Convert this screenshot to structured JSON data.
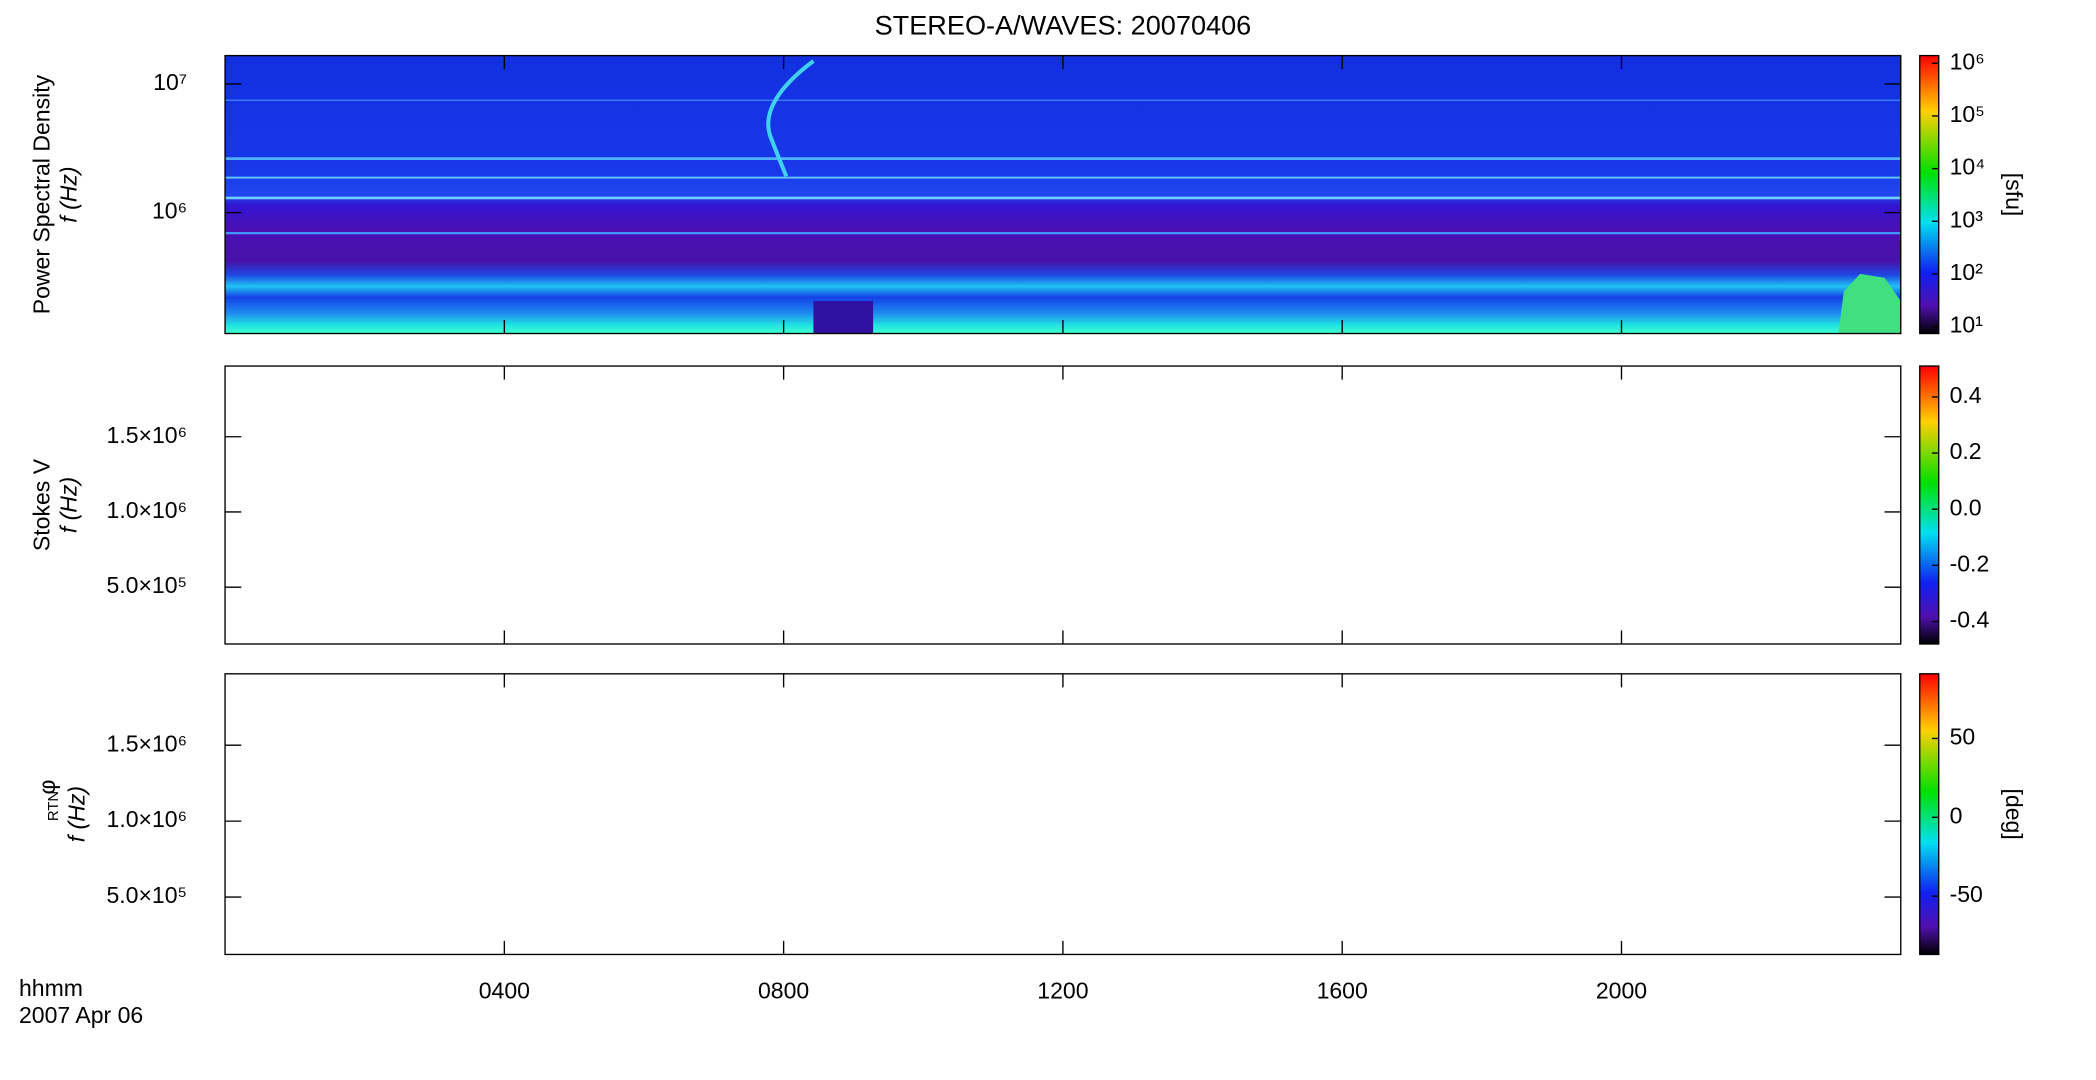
{
  "title": "STEREO-A/WAVES: 20070406",
  "x_axis": {
    "label": "hhmm",
    "date": "2007 Apr 06",
    "xlim": [
      0,
      24
    ],
    "xticks": [
      {
        "value": 4,
        "label": "0400"
      },
      {
        "value": 8,
        "label": "0800"
      },
      {
        "value": 12,
        "label": "1200"
      },
      {
        "value": 16,
        "label": "1600"
      },
      {
        "value": 20,
        "label": "2000"
      }
    ]
  },
  "chart_data": [
    {
      "type": "spectrogram",
      "ylabel": "Power Spectral Density",
      "ylabel2": "f (Hz)",
      "log_y": true,
      "ylim": [
        115000,
        16600000
      ],
      "yticks": [
        {
          "value": 1000000,
          "label": "10⁶"
        },
        {
          "value": 10000000,
          "label": "10⁷"
        }
      ],
      "colorbar": {
        "label": "[sfu]",
        "log": true,
        "clim": [
          7.4,
          1400000
        ],
        "ticks": [
          {
            "value": 10,
            "label": "10¹"
          },
          {
            "value": 100,
            "label": "10²"
          },
          {
            "value": 1000,
            "label": "10³"
          },
          {
            "value": 10000,
            "label": "10⁴"
          },
          {
            "value": 100000,
            "label": "10⁵"
          },
          {
            "value": 1000000,
            "label": "10⁶"
          }
        ]
      }
    },
    {
      "type": "spectrogram",
      "ylabel": "Stokes V",
      "ylabel2": "f (Hz)",
      "log_y": false,
      "ylim": [
        122000,
        1970000
      ],
      "yticks": [
        {
          "value": 500000,
          "label": "5.0×10⁵"
        },
        {
          "value": 1000000,
          "label": "1.0×10⁶"
        },
        {
          "value": 1500000,
          "label": "1.5×10⁶"
        }
      ],
      "colorbar": {
        "log": false,
        "clim": [
          -0.48,
          0.51
        ],
        "ticks": [
          -0.4,
          -0.2,
          {
            "value": 0,
            "label": "0.0"
          },
          0.2,
          0.4
        ]
      }
    },
    {
      "type": "spectrogram",
      "ylabel": "φ",
      "ylabel_sub": "RTN",
      "ylabel2": "f (Hz)",
      "log_y": false,
      "ylim": [
        122000,
        1970000
      ],
      "yticks": [
        {
          "value": 500000,
          "label": "5.0×10⁵"
        },
        {
          "value": 1000000,
          "label": "1.0×10⁶"
        },
        {
          "value": 1500000,
          "label": "1.5×10⁶"
        }
      ],
      "colorbar": {
        "label": "[deg]",
        "log": false,
        "clim": [
          -87,
          91
        ],
        "ticks": [
          -50,
          0,
          50
        ]
      }
    }
  ]
}
